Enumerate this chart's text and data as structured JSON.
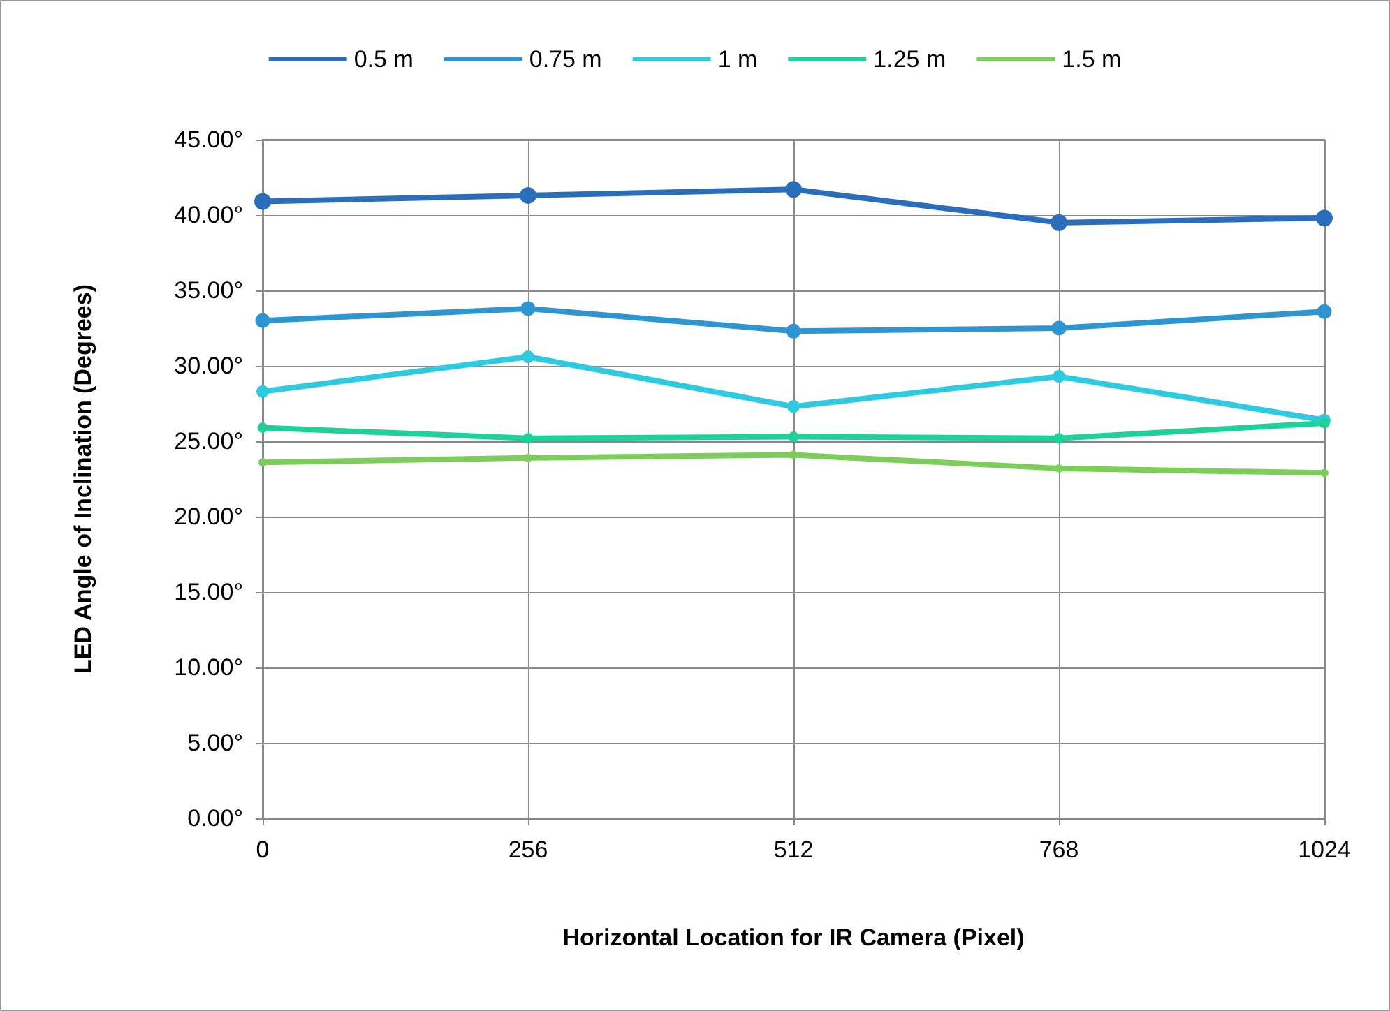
{
  "chart_data": {
    "type": "line",
    "xlabel": "Horizontal Location for IR Camera (Pixel)",
    "ylabel": "LED Angle of Inclination (Degrees)",
    "x": [
      0,
      256,
      512,
      768,
      1024
    ],
    "xlim": [
      0,
      1024
    ],
    "xticks": [
      0,
      256,
      512,
      768,
      1024
    ],
    "ylim": [
      0,
      45
    ],
    "yticks": [
      {
        "value": 0,
        "label": "0.00°"
      },
      {
        "value": 5,
        "label": "5.00°"
      },
      {
        "value": 10,
        "label": "10.00°"
      },
      {
        "value": 15,
        "label": "15.00°"
      },
      {
        "value": 20,
        "label": "20.00°"
      },
      {
        "value": 25,
        "label": "25.00°"
      },
      {
        "value": 30,
        "label": "30.00°"
      },
      {
        "value": 35,
        "label": "35.00°"
      },
      {
        "value": 40,
        "label": "40.00°"
      },
      {
        "value": 45,
        "label": "45.00°"
      }
    ],
    "grid": true,
    "legend": "top",
    "marker": "circle",
    "line_style": "solid",
    "series": [
      {
        "name": "0.5 m",
        "color": "#2a6ebb",
        "values": [
          40.9,
          41.3,
          41.7,
          39.5,
          39.8
        ]
      },
      {
        "name": "0.75 m",
        "color": "#2e95d3",
        "values": [
          33.0,
          33.8,
          32.3,
          32.5,
          33.6
        ]
      },
      {
        "name": "1 m",
        "color": "#2ecbe0",
        "values": [
          28.3,
          30.6,
          27.3,
          29.3,
          26.4
        ]
      },
      {
        "name": "1.25 m",
        "color": "#1ed09a",
        "values": [
          25.9,
          25.2,
          25.3,
          25.2,
          26.2
        ]
      },
      {
        "name": "1.5 m",
        "color": "#7ccd5a",
        "values": [
          23.6,
          23.9,
          24.1,
          23.2,
          22.9
        ]
      }
    ]
  }
}
